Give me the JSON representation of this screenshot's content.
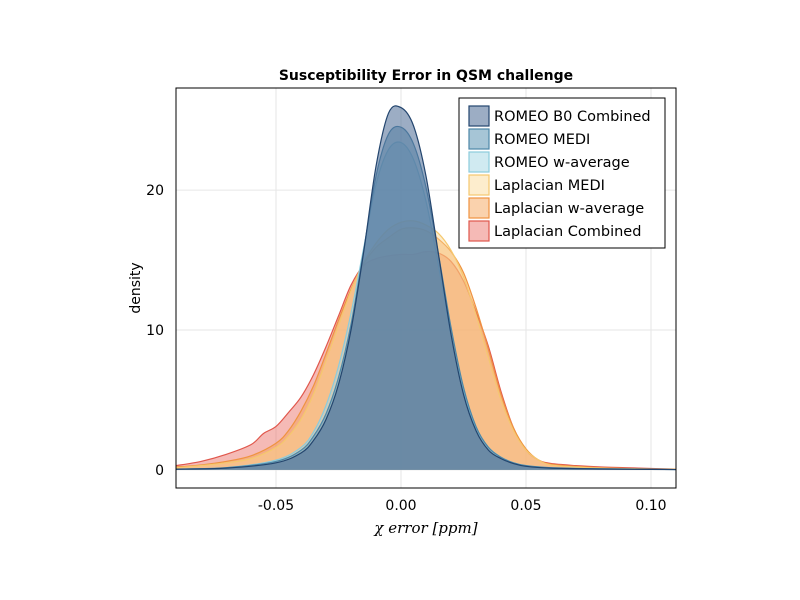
{
  "chart_data": {
    "type": "area",
    "title": "Susceptibility Error in QSM challenge",
    "xlabel": "χ error [ppm]",
    "ylabel": "density",
    "xlim": [
      -0.09,
      0.11
    ],
    "ylim": [
      -1.3,
      27.3
    ],
    "xticks": [
      -0.05,
      0.0,
      0.05,
      0.1
    ],
    "xtick_labels": [
      "-0.05",
      "0.00",
      "0.05",
      "0.10"
    ],
    "yticks": [
      0,
      10,
      20
    ],
    "ytick_labels": [
      "0",
      "10",
      "20"
    ],
    "grid": true,
    "legend_position": "top-right",
    "series": [
      {
        "name": "Laplacian Combined",
        "fill": "#e9675d",
        "stroke": "#e0574c",
        "fill_opacity": 0.45,
        "x": [
          -0.09,
          -0.08,
          -0.07,
          -0.06,
          -0.055,
          -0.05,
          -0.045,
          -0.04,
          -0.035,
          -0.03,
          -0.025,
          -0.02,
          -0.015,
          -0.01,
          -0.005,
          0.0,
          0.005,
          0.01,
          0.015,
          0.02,
          0.025,
          0.03,
          0.035,
          0.04,
          0.045,
          0.05,
          0.055,
          0.06,
          0.07,
          0.08,
          0.09,
          0.1,
          0.11
        ],
        "values": [
          0.3,
          0.6,
          1.1,
          1.8,
          2.6,
          3.1,
          4.1,
          5.2,
          6.8,
          8.8,
          11.0,
          13.2,
          14.6,
          15.1,
          15.3,
          15.4,
          15.4,
          15.6,
          15.5,
          14.9,
          13.5,
          11.3,
          8.8,
          5.6,
          3.0,
          1.4,
          0.7,
          0.45,
          0.3,
          0.2,
          0.15,
          0.1,
          0.05
        ]
      },
      {
        "name": "Laplacian w-average",
        "fill": "#f39c4a",
        "stroke": "#ef9340",
        "fill_opacity": 0.45,
        "x": [
          -0.09,
          -0.08,
          -0.07,
          -0.06,
          -0.05,
          -0.045,
          -0.04,
          -0.035,
          -0.03,
          -0.025,
          -0.02,
          -0.015,
          -0.01,
          -0.005,
          0.0,
          0.005,
          0.01,
          0.015,
          0.02,
          0.025,
          0.03,
          0.035,
          0.04,
          0.045,
          0.05,
          0.055,
          0.06,
          0.07,
          0.08,
          0.09,
          0.1,
          0.11
        ],
        "values": [
          0.2,
          0.35,
          0.6,
          1.0,
          1.9,
          2.8,
          4.2,
          6.0,
          8.3,
          10.7,
          12.9,
          14.7,
          15.9,
          16.6,
          17.2,
          17.3,
          17.1,
          16.5,
          15.6,
          14.1,
          11.6,
          8.6,
          5.4,
          3.0,
          1.5,
          0.7,
          0.4,
          0.25,
          0.15,
          0.1,
          0.07,
          0.05
        ]
      },
      {
        "name": "Laplacian MEDI",
        "fill": "#fad691",
        "stroke": "#f5c86e",
        "fill_opacity": 0.45,
        "x": [
          -0.09,
          -0.08,
          -0.07,
          -0.06,
          -0.05,
          -0.045,
          -0.04,
          -0.035,
          -0.03,
          -0.025,
          -0.02,
          -0.015,
          -0.01,
          -0.005,
          0.0,
          0.005,
          0.01,
          0.015,
          0.02,
          0.025,
          0.03,
          0.035,
          0.04,
          0.045,
          0.05,
          0.055,
          0.06,
          0.07,
          0.08,
          0.09,
          0.1,
          0.11
        ],
        "values": [
          0.15,
          0.3,
          0.5,
          0.8,
          1.6,
          2.4,
          3.6,
          5.4,
          7.8,
          10.3,
          12.8,
          14.8,
          16.2,
          17.2,
          17.7,
          17.8,
          17.5,
          16.9,
          15.7,
          13.8,
          11.1,
          8.0,
          5.0,
          2.8,
          1.4,
          0.7,
          0.35,
          0.2,
          0.12,
          0.08,
          0.05,
          0.03
        ]
      },
      {
        "name": "ROMEO w-average",
        "fill": "#a9d8e6",
        "stroke": "#8ccbdd",
        "fill_opacity": 0.55,
        "x": [
          -0.09,
          -0.07,
          -0.05,
          -0.04,
          -0.035,
          -0.03,
          -0.025,
          -0.02,
          -0.015,
          -0.01,
          -0.005,
          0.0,
          0.005,
          0.01,
          0.015,
          0.02,
          0.025,
          0.03,
          0.035,
          0.04,
          0.045,
          0.05,
          0.06,
          0.08,
          0.1,
          0.11
        ],
        "values": [
          0.05,
          0.15,
          0.7,
          1.6,
          2.7,
          4.6,
          7.4,
          11.2,
          15.8,
          20.4,
          22.9,
          23.4,
          22.2,
          19.2,
          14.6,
          9.6,
          5.6,
          3.0,
          1.6,
          0.9,
          0.5,
          0.3,
          0.15,
          0.07,
          0.04,
          0.02
        ]
      },
      {
        "name": "ROMEO MEDI",
        "fill": "#6a9fbb",
        "stroke": "#4d87a8",
        "fill_opacity": 0.6,
        "x": [
          -0.09,
          -0.07,
          -0.05,
          -0.04,
          -0.035,
          -0.03,
          -0.025,
          -0.02,
          -0.015,
          -0.01,
          -0.005,
          0.0,
          0.005,
          0.01,
          0.015,
          0.02,
          0.025,
          0.03,
          0.035,
          0.04,
          0.045,
          0.05,
          0.06,
          0.08,
          0.1,
          0.11
        ],
        "values": [
          0.05,
          0.15,
          0.6,
          1.4,
          2.4,
          4.0,
          6.6,
          10.4,
          15.6,
          21.0,
          24.0,
          24.5,
          23.3,
          20.2,
          15.4,
          10.2,
          5.9,
          3.1,
          1.6,
          0.9,
          0.5,
          0.3,
          0.15,
          0.07,
          0.04,
          0.02
        ]
      },
      {
        "name": "ROMEO B0 Combined",
        "fill": "#4b6a93",
        "stroke": "#23456e",
        "fill_opacity": 0.55,
        "x": [
          -0.09,
          -0.07,
          -0.05,
          -0.04,
          -0.035,
          -0.03,
          -0.025,
          -0.02,
          -0.015,
          -0.01,
          -0.005,
          0.0,
          0.005,
          0.01,
          0.015,
          0.02,
          0.025,
          0.03,
          0.035,
          0.04,
          0.045,
          0.05,
          0.06,
          0.08,
          0.1,
          0.11
        ],
        "values": [
          0.05,
          0.12,
          0.5,
          1.2,
          2.1,
          3.6,
          6.1,
          10.0,
          15.5,
          21.7,
          25.5,
          25.9,
          24.6,
          21.0,
          15.4,
          9.7,
          5.4,
          2.8,
          1.4,
          0.8,
          0.45,
          0.25,
          0.12,
          0.06,
          0.03,
          0.02
        ]
      }
    ],
    "legend_order": [
      "ROMEO B0 Combined",
      "ROMEO MEDI",
      "ROMEO w-average",
      "Laplacian MEDI",
      "Laplacian w-average",
      "Laplacian Combined"
    ]
  }
}
